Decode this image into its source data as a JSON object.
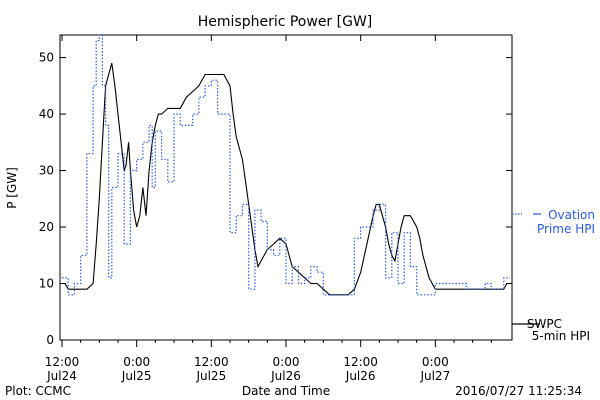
{
  "chart_data": {
    "type": "line",
    "title": "Hemispheric Power [GW]",
    "ylabel": "P [GW]",
    "xlabel": "Date and Time",
    "ylim": [
      0,
      54
    ],
    "xlim": [
      0,
      72
    ],
    "yticks": [
      0,
      10,
      20,
      30,
      40,
      50
    ],
    "xticks": [
      {
        "x": 0,
        "line1": "12:00",
        "line2": "Jul24"
      },
      {
        "x": 12,
        "line1": "0:00",
        "line2": "Jul25"
      },
      {
        "x": 24,
        "line1": "12:00",
        "line2": "Jul25"
      },
      {
        "x": 36,
        "line1": "0:00",
        "line2": "Jul26"
      },
      {
        "x": 48,
        "line1": "12:00",
        "line2": "Jul26"
      },
      {
        "x": 60,
        "line1": "0:00",
        "line2": "Jul27"
      }
    ],
    "grid": false,
    "series": [
      {
        "name": "SWPC 5-min HPI",
        "style": "solid",
        "color": "#000000",
        "points": [
          [
            0,
            10
          ],
          [
            0.5,
            10
          ],
          [
            1,
            9
          ],
          [
            4,
            9
          ],
          [
            5,
            10
          ],
          [
            5.5,
            17
          ],
          [
            6,
            25
          ],
          [
            6.5,
            35
          ],
          [
            7,
            45
          ],
          [
            7.5,
            47
          ],
          [
            8,
            49
          ],
          [
            8.5,
            45
          ],
          [
            9,
            40
          ],
          [
            9.5,
            35
          ],
          [
            10,
            30
          ],
          [
            10.3,
            31
          ],
          [
            10.7,
            35
          ],
          [
            11,
            30
          ],
          [
            11.5,
            23
          ],
          [
            12,
            20
          ],
          [
            12.5,
            22
          ],
          [
            13,
            27
          ],
          [
            13.5,
            22
          ],
          [
            14,
            30
          ],
          [
            14.5,
            35
          ],
          [
            15,
            38
          ],
          [
            15.5,
            40
          ],
          [
            16,
            40
          ],
          [
            17,
            41
          ],
          [
            18,
            41
          ],
          [
            19,
            41
          ],
          [
            19.5,
            42
          ],
          [
            20,
            43
          ],
          [
            21,
            44
          ],
          [
            22,
            45
          ],
          [
            23,
            47
          ],
          [
            24,
            47
          ],
          [
            25,
            47
          ],
          [
            26,
            47
          ],
          [
            27,
            45
          ],
          [
            27.5,
            40
          ],
          [
            28,
            36
          ],
          [
            29,
            32
          ],
          [
            29.5,
            28
          ],
          [
            30,
            24
          ],
          [
            30.5,
            20
          ],
          [
            31,
            16
          ],
          [
            31.5,
            13
          ],
          [
            32,
            14
          ],
          [
            33,
            16
          ],
          [
            34,
            17
          ],
          [
            35,
            18
          ],
          [
            36,
            17
          ],
          [
            36.5,
            15
          ],
          [
            37,
            13
          ],
          [
            38,
            12
          ],
          [
            39,
            11
          ],
          [
            40,
            10
          ],
          [
            41,
            10
          ],
          [
            42,
            9
          ],
          [
            43,
            8
          ],
          [
            44,
            8
          ],
          [
            45,
            8
          ],
          [
            46,
            8
          ],
          [
            47,
            9
          ],
          [
            48,
            12
          ],
          [
            49,
            17
          ],
          [
            50,
            22
          ],
          [
            50.5,
            24
          ],
          [
            51,
            24
          ],
          [
            51.5,
            22
          ],
          [
            52,
            20
          ],
          [
            52.5,
            17
          ],
          [
            53,
            15
          ],
          [
            53.5,
            14
          ],
          [
            54,
            17
          ],
          [
            54.5,
            20
          ],
          [
            55,
            22
          ],
          [
            56,
            22
          ],
          [
            56.5,
            21
          ],
          [
            57,
            20
          ],
          [
            57.5,
            18
          ],
          [
            58,
            15
          ],
          [
            59,
            11
          ],
          [
            59.5,
            10
          ],
          [
            60,
            9
          ],
          [
            61,
            9
          ],
          [
            62,
            9
          ],
          [
            63,
            9
          ],
          [
            64,
            9
          ],
          [
            65,
            9
          ],
          [
            66,
            9
          ],
          [
            67,
            9
          ],
          [
            68,
            9
          ],
          [
            69,
            9
          ],
          [
            70,
            9
          ],
          [
            71,
            9
          ],
          [
            71.5,
            10
          ],
          [
            72,
            10
          ]
        ]
      },
      {
        "name": "Ovation Prime HPI",
        "style": "dotted",
        "color": "#2a5bd7",
        "points": [
          [
            0,
            11
          ],
          [
            1,
            8
          ],
          [
            2,
            10
          ],
          [
            3,
            15
          ],
          [
            4,
            33
          ],
          [
            5,
            45
          ],
          [
            5.5,
            53
          ],
          [
            6,
            54
          ],
          [
            6.5,
            45
          ],
          [
            7,
            38
          ],
          [
            7.5,
            11
          ],
          [
            8,
            27
          ],
          [
            9,
            33
          ],
          [
            10,
            17
          ],
          [
            11,
            30
          ],
          [
            12,
            32
          ],
          [
            13,
            35
          ],
          [
            14,
            38
          ],
          [
            14.5,
            27
          ],
          [
            15,
            37
          ],
          [
            16,
            32
          ],
          [
            17,
            28
          ],
          [
            18,
            40
          ],
          [
            19,
            38
          ],
          [
            20,
            38
          ],
          [
            21,
            40
          ],
          [
            22,
            43
          ],
          [
            23,
            45
          ],
          [
            24,
            46
          ],
          [
            25,
            40
          ],
          [
            26,
            40
          ],
          [
            27,
            19
          ],
          [
            28,
            22
          ],
          [
            29,
            24
          ],
          [
            30,
            9
          ],
          [
            31,
            23
          ],
          [
            32,
            21
          ],
          [
            33,
            16
          ],
          [
            34,
            15
          ],
          [
            35,
            18
          ],
          [
            36,
            10
          ],
          [
            37,
            13
          ],
          [
            38,
            10
          ],
          [
            39,
            11
          ],
          [
            40,
            13
          ],
          [
            41,
            12
          ],
          [
            42,
            8
          ],
          [
            43,
            8
          ],
          [
            44,
            8
          ],
          [
            45,
            8
          ],
          [
            46,
            8
          ],
          [
            47,
            18
          ],
          [
            48,
            20
          ],
          [
            49,
            20
          ],
          [
            50,
            23
          ],
          [
            51,
            24
          ],
          [
            52,
            11
          ],
          [
            53,
            19
          ],
          [
            54,
            10
          ],
          [
            55,
            19
          ],
          [
            56,
            13
          ],
          [
            57,
            8
          ],
          [
            58,
            8
          ],
          [
            59,
            8
          ],
          [
            60,
            10
          ],
          [
            61,
            10
          ],
          [
            62,
            10
          ],
          [
            63,
            10
          ],
          [
            64,
            10
          ],
          [
            65,
            9
          ],
          [
            66,
            9
          ],
          [
            67,
            9
          ],
          [
            68,
            10
          ],
          [
            69,
            9
          ],
          [
            70,
            9
          ],
          [
            71,
            11
          ],
          [
            72,
            11
          ]
        ]
      }
    ],
    "legend": {
      "position": "right",
      "ovation_line1": "Ovation",
      "ovation_line2": "Prime HPI",
      "swpc_line1": "SWPC",
      "swpc_line2": "5-min HPI"
    }
  },
  "footer": {
    "plot_credit": "Plot: CCMC",
    "timestamp": "2016/07/27 11:25:34"
  }
}
